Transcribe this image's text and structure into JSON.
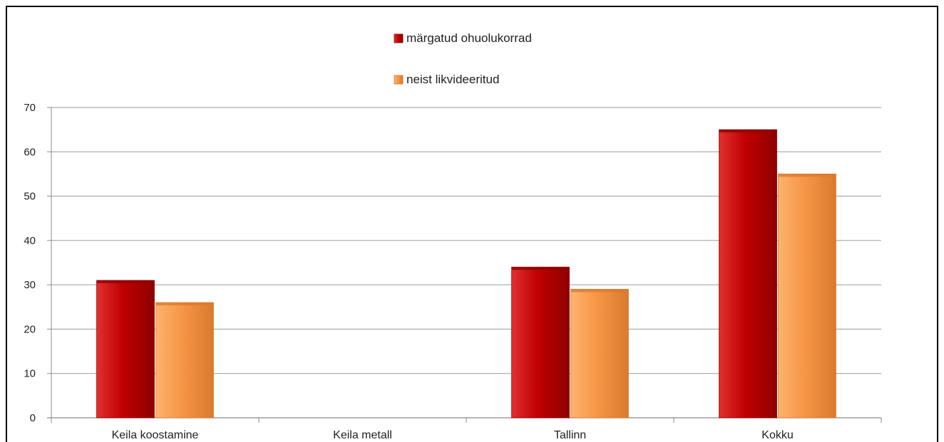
{
  "chart_data": {
    "type": "bar",
    "categories": [
      "Keila koostamine",
      "Keila metall",
      "Tallinn",
      "Kokku"
    ],
    "series": [
      {
        "name": "märgatud ohuolukorrad",
        "values": [
          31,
          0,
          34,
          65
        ],
        "color": "#c00000",
        "color_dark": "#8e0000",
        "color_light": "#e23030"
      },
      {
        "name": "neist likvideeritud",
        "values": [
          26,
          0,
          29,
          55
        ],
        "color": "#f79646",
        "color_dark": "#d97a2e",
        "color_light": "#fbb36e"
      }
    ],
    "yticks": [
      "0",
      "10",
      "20",
      "30",
      "40",
      "50",
      "60",
      "70"
    ],
    "ylim": [
      0,
      70
    ],
    "grid": true,
    "legend_position": "top-center",
    "xlabel": "",
    "ylabel": "",
    "title": ""
  }
}
